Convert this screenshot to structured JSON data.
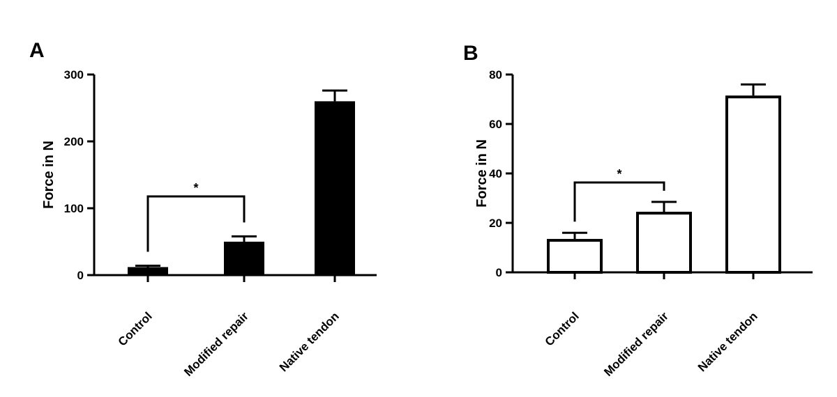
{
  "chart_data": [
    {
      "panel_label": "A",
      "type": "bar",
      "categories": [
        "Control",
        "Modified repair",
        "Native tendon"
      ],
      "values": [
        12,
        50,
        260
      ],
      "errors": [
        2,
        8,
        16
      ],
      "ylabel": "Force in N",
      "ylim": [
        0,
        300
      ],
      "yticks": [
        0,
        100,
        200,
        300
      ],
      "fill": "filled",
      "significance": {
        "from": 0,
        "to": 1,
        "label": "*"
      }
    },
    {
      "panel_label": "B",
      "type": "bar",
      "categories": [
        "Control",
        "Modified repair",
        "Native tendon"
      ],
      "values": [
        13.5,
        24.5,
        71.5
      ],
      "errors": [
        2.5,
        4,
        4.5
      ],
      "ylabel": "Force in N",
      "ylim": [
        0,
        80
      ],
      "yticks": [
        0,
        20,
        40,
        60,
        80
      ],
      "fill": "open",
      "significance": {
        "from": 0,
        "to": 1,
        "label": "*"
      }
    }
  ],
  "colors": {
    "ink": "#000000",
    "open_bar_fill": "#ffffff"
  }
}
